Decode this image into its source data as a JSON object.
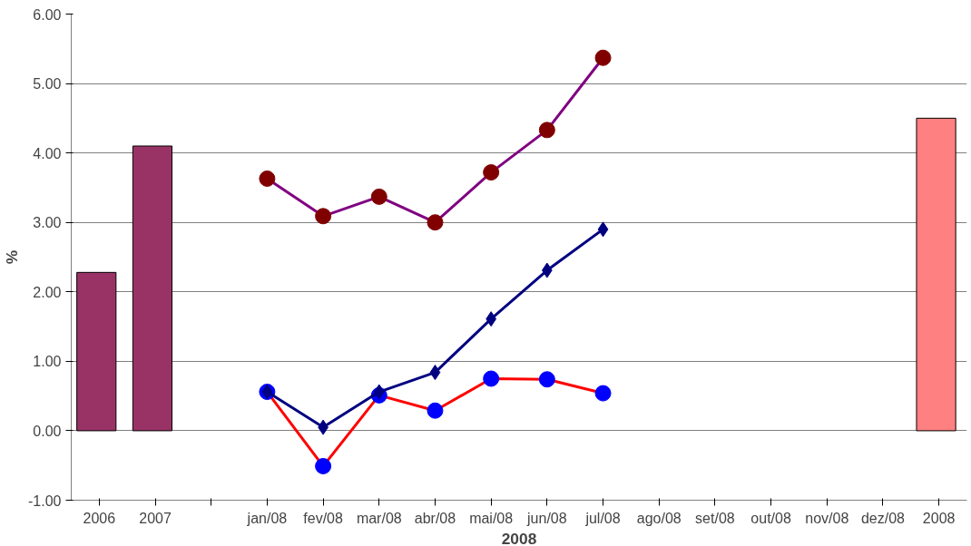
{
  "chart_data": {
    "type": "bar",
    "xlabel": "2008",
    "ylabel": "%",
    "categories": [
      "2006",
      "2007",
      null,
      "jan/08",
      "fev/08",
      "mar/08",
      "abr/08",
      "mai/08",
      "jun/08",
      "jul/08",
      "ago/08",
      "set/08",
      "out/08",
      "nov/08",
      "dez/08",
      "2008"
    ],
    "series": [
      {
        "colors": [
          "#993366",
          "#993366",
          null,
          null,
          null,
          null,
          null,
          null,
          null,
          null,
          null,
          null,
          null,
          null,
          null,
          "#ff8080"
        ],
        "values": [
          2.28,
          4.1,
          null,
          null,
          null,
          null,
          null,
          null,
          null,
          null,
          null,
          null,
          null,
          null,
          null,
          4.5
        ]
      },
      {
        "type": "line",
        "color": "#800080",
        "marker": "circle",
        "colors": [
          null,
          null,
          null,
          "#800000",
          "#800000",
          "#800000",
          "#800000",
          "#800000",
          "#800000",
          "#800000",
          null,
          null,
          null,
          null,
          null,
          null
        ],
        "values": [
          null,
          null,
          null,
          3.63,
          3.09,
          3.37,
          3.0,
          3.72,
          4.33,
          5.37,
          null,
          null,
          null,
          null,
          null,
          null
        ]
      },
      {
        "type": "line",
        "color": "#ff0000",
        "marker": "circle",
        "colors": [
          null,
          null,
          null,
          "#0000ff",
          "#0000ff",
          "#0000ff",
          "#0000ff",
          "#0000ff",
          "#0000ff",
          "#0000ff",
          null,
          null,
          null,
          null,
          null,
          null
        ],
        "values": [
          null,
          null,
          null,
          0.56,
          -0.51,
          0.51,
          0.29,
          0.75,
          0.74,
          0.54,
          null,
          null,
          null,
          null,
          null,
          null
        ]
      },
      {
        "type": "line",
        "color": "#000080",
        "marker": "diamond",
        "values": [
          null,
          null,
          null,
          0.56,
          0.05,
          0.56,
          0.84,
          1.61,
          2.31,
          2.9,
          null,
          null,
          null,
          null,
          null,
          null
        ]
      }
    ],
    "ylim": [
      -1,
      6
    ],
    "yticks": [
      {
        "value": -1,
        "label": "-1.00"
      },
      {
        "value": 0,
        "label": "0.00"
      },
      {
        "value": 1,
        "label": "1.00"
      },
      {
        "value": 2,
        "label": "2.00"
      },
      {
        "value": 3,
        "label": "3.00"
      },
      {
        "value": 4,
        "label": "4.00"
      },
      {
        "value": 5,
        "label": "5.00"
      },
      {
        "value": 6,
        "label": "6.00"
      }
    ],
    "grid": "y"
  }
}
